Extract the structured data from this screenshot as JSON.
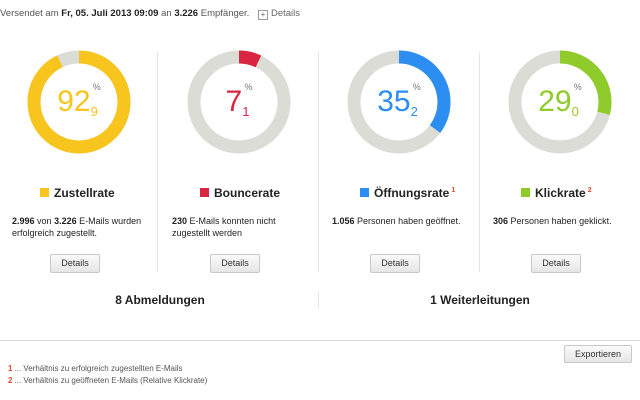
{
  "header": {
    "prefix": "Versendet am",
    "date": "Fr, 05. Juli 2013 09:09",
    "middle": "an",
    "count": "3.226",
    "suffix": "Empfänger.",
    "expand_symbol": "+",
    "details_link": "Details"
  },
  "stats": [
    {
      "id": "zustellrate",
      "value": 92.9,
      "int": "92",
      "dec": "9",
      "unit": "%",
      "color": "#f7c51e",
      "track_color": "#dcdcd6",
      "label": "Zustellrate",
      "footnote": "",
      "desc_bold1": "2.996",
      "desc_mid": "von",
      "desc_bold2": "3.226",
      "desc_rest": "E-Mails wurden erfolgreich zugestellt.",
      "button": "Details"
    },
    {
      "id": "bouncerate",
      "value": 7.1,
      "int": "7",
      "dec": "1",
      "unit": "%",
      "color": "#d9253f",
      "track_color": "#dcdcd6",
      "label": "Bouncerate",
      "footnote": "",
      "desc_bold1": "230",
      "desc_mid": "",
      "desc_bold2": "",
      "desc_rest": "E-Mails konnten nicht zugestellt werden",
      "button": "Details"
    },
    {
      "id": "oeffnungsrate",
      "value": 35.2,
      "int": "35",
      "dec": "2",
      "unit": "%",
      "color": "#2b8ef0",
      "track_color": "#dcdcd6",
      "label": "Öffnungsrate",
      "footnote": "1",
      "desc_bold1": "1.056",
      "desc_mid": "",
      "desc_bold2": "",
      "desc_rest": "Personen haben geöffnet.",
      "button": "Details"
    },
    {
      "id": "klickrate",
      "value": 29.0,
      "int": "29",
      "dec": "0",
      "unit": "%",
      "color": "#8fcb2b",
      "track_color": "#dcdcd6",
      "label": "Klickrate",
      "footnote": "2",
      "desc_bold1": "306",
      "desc_mid": "",
      "desc_bold2": "",
      "desc_rest": "Personen haben geklickt.",
      "button": "Details"
    }
  ],
  "summary": {
    "abmeldungen": "8 Abmeldungen",
    "weiterleitungen": "1 Weiterleitungen"
  },
  "export_button": "Exportieren",
  "footnotes": [
    {
      "num": "1",
      "text": "... Verhältnis zu erfolgreich zugestellten E-Mails"
    },
    {
      "num": "2",
      "text": "... Verhältnis zu geöffneten E-Mails (Relative Klickrate)"
    }
  ]
}
